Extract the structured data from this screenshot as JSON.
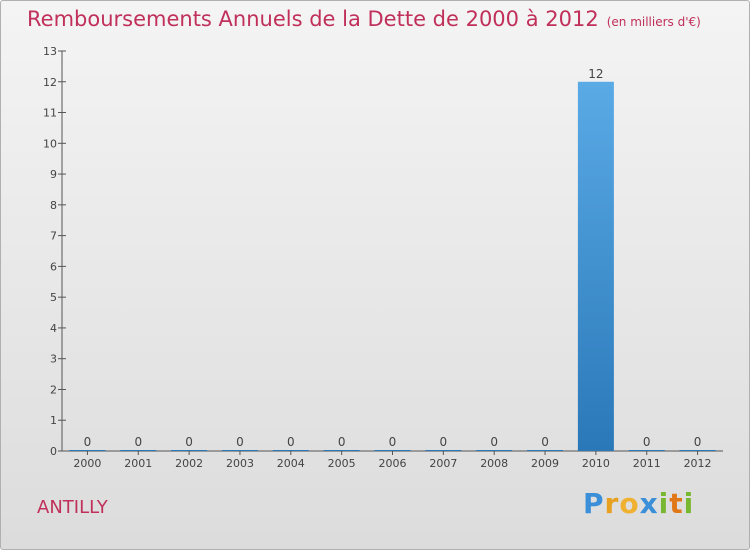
{
  "chart_data": {
    "type": "bar",
    "title": "Remboursements Annuels de la Dette de 2000 à 2012",
    "unit_label": "(en milliers d'€)",
    "categories": [
      "2000",
      "2001",
      "2002",
      "2003",
      "2004",
      "2005",
      "2006",
      "2007",
      "2008",
      "2009",
      "2010",
      "2011",
      "2012"
    ],
    "values": [
      0,
      0,
      0,
      0,
      0,
      0,
      0,
      0,
      0,
      0,
      12,
      0,
      0
    ],
    "value_labels": [
      "0",
      "0",
      "0",
      "0",
      "0",
      "0",
      "0",
      "0",
      "0",
      "0",
      "12",
      "0",
      "0"
    ],
    "ylim": [
      0,
      13
    ],
    "yticks": [
      0,
      1,
      2,
      3,
      4,
      5,
      6,
      7,
      8,
      9,
      10,
      11,
      12,
      13
    ],
    "xlabel": "",
    "ylabel": "",
    "grid": false,
    "bar_color_top": "#5aaae6",
    "bar_color_bottom": "#2a78b8"
  },
  "footer": {
    "commune": "ANTILLY",
    "logo_parts": [
      "P",
      "r",
      "o",
      "x",
      "i",
      "t",
      "i"
    ]
  }
}
